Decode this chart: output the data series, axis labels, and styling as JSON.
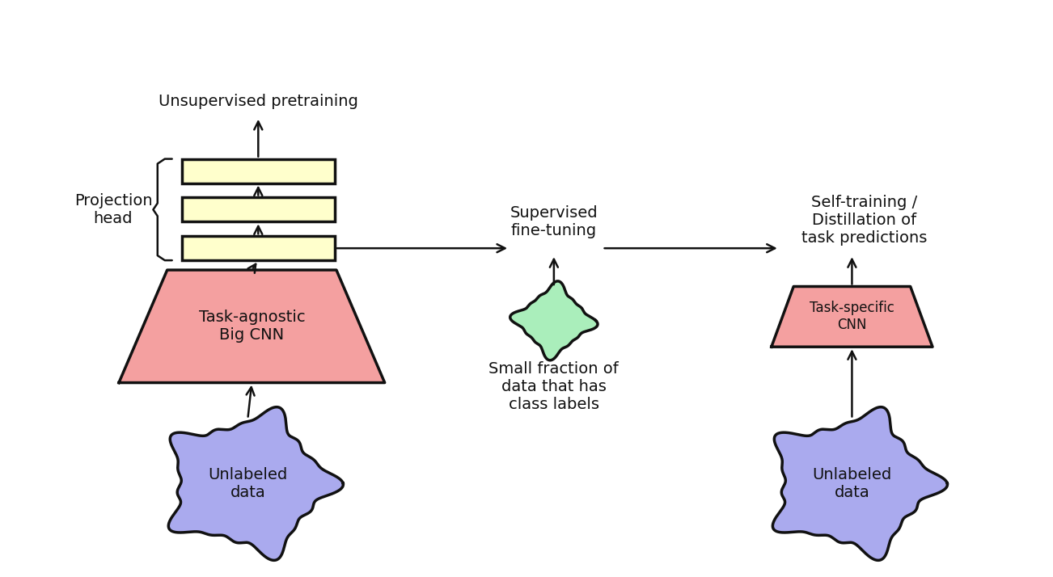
{
  "bg_color": "#ffffff",
  "cloud_color": "#aaaaee",
  "cloud_edge": "#111111",
  "trapezoid_big_color": "#f4a0a0",
  "trapezoid_small_color": "#f4a0a0",
  "rect_color": "#ffffcc",
  "rect_edge": "#111111",
  "blob_color": "#aaeebb",
  "blob_edge": "#111111",
  "arrow_color": "#111111",
  "text_color": "#111111",
  "labels": {
    "unsupervised": "Unsupervised pretraining",
    "projection": "Projection\nhead",
    "big_cnn": "Task-agnostic\nBig CNN",
    "unlabeled1": "Unlabeled\ndata",
    "supervised": "Supervised\nfine-tuning",
    "small_fraction": "Small fraction of\ndata that has\nclass labels",
    "self_training": "Self-training /\nDistillation of\ntask predictions",
    "task_specific": "Task-specific\nCNN",
    "unlabeled2": "Unlabeled\ndata"
  }
}
